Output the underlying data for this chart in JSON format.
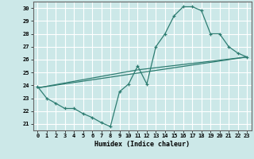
{
  "title": "",
  "xlabel": "Humidex (Indice chaleur)",
  "bg_color": "#cce8e8",
  "grid_color": "#ffffff",
  "line_color": "#2e7d72",
  "xlim": [
    -0.5,
    23.5
  ],
  "ylim": [
    20.5,
    30.5
  ],
  "xticks": [
    0,
    1,
    2,
    3,
    4,
    5,
    6,
    7,
    8,
    9,
    10,
    11,
    12,
    13,
    14,
    15,
    16,
    17,
    18,
    19,
    20,
    21,
    22,
    23
  ],
  "yticks": [
    21,
    22,
    23,
    24,
    25,
    26,
    27,
    28,
    29,
    30
  ],
  "series1_x": [
    0,
    1,
    2,
    3,
    4,
    5,
    6,
    7,
    8,
    9,
    10,
    11,
    12,
    13,
    14,
    15,
    16,
    17,
    18,
    19,
    20,
    21,
    22,
    23
  ],
  "series1_y": [
    23.9,
    23.0,
    22.6,
    22.2,
    22.2,
    21.8,
    21.5,
    21.1,
    20.8,
    23.5,
    24.1,
    25.5,
    24.1,
    27.0,
    28.0,
    29.4,
    30.1,
    30.1,
    29.8,
    28.0,
    28.0,
    27.0,
    26.5,
    26.2
  ],
  "series2_x": [
    0,
    23
  ],
  "series2_y": [
    23.8,
    26.2
  ],
  "series3_x": [
    0,
    11,
    23
  ],
  "series3_y": [
    23.8,
    25.2,
    26.2
  ]
}
